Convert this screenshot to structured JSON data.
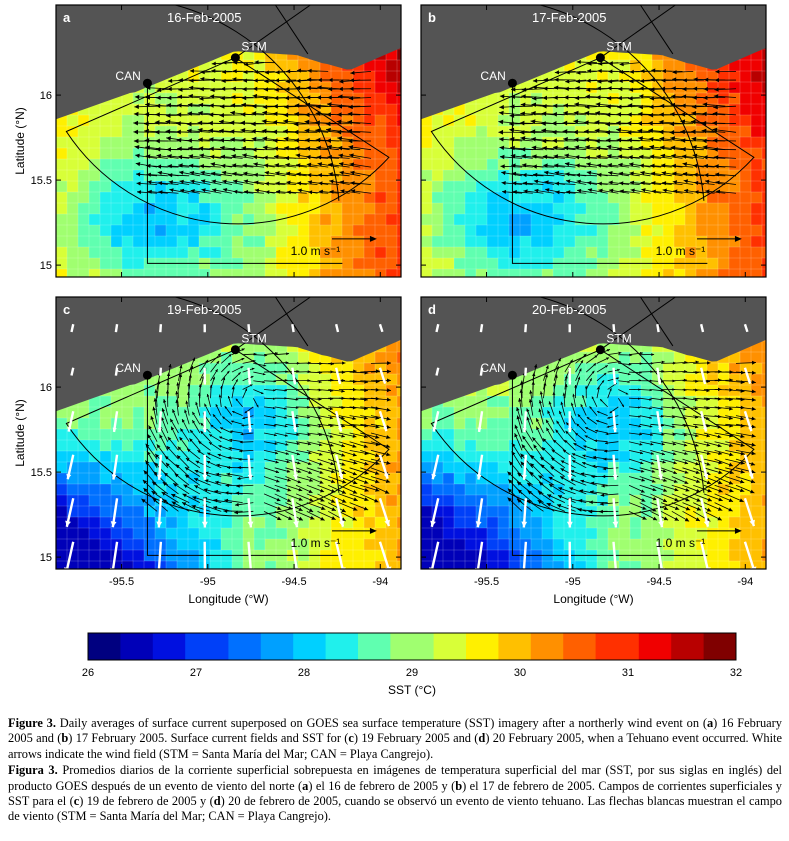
{
  "panels": [
    {
      "letter": "a",
      "date": "16-Feb-2005",
      "mode": "easterly",
      "wind": false,
      "sst": "warm",
      "show_x_labels": false,
      "show_y_labels": true
    },
    {
      "letter": "b",
      "date": "17-Feb-2005",
      "mode": "easterly",
      "wind": false,
      "sst": "warm",
      "show_x_labels": false,
      "show_y_labels": false
    },
    {
      "letter": "c",
      "date": "19-Feb-2005",
      "mode": "gyre",
      "wind": true,
      "sst": "cool",
      "show_x_labels": true,
      "show_y_labels": true
    },
    {
      "letter": "d",
      "date": "20-Feb-2005",
      "mode": "gyre",
      "wind": true,
      "sst": "cool",
      "show_x_labels": true,
      "show_y_labels": false
    }
  ],
  "axes": {
    "xlabel": "Longitude (°W)",
    "ylabel": "Latitude (°N)",
    "xticks": [
      "-95.5",
      "-95",
      "-94.5",
      "-94"
    ],
    "yticks": [
      "16",
      "15.5",
      "15"
    ],
    "xlim": [
      -95.88,
      -93.88
    ],
    "ylim": [
      14.93,
      16.53
    ]
  },
  "stations": [
    {
      "label": "CAN",
      "lon": -95.35,
      "lat": 16.07
    },
    {
      "label": "STM",
      "lon": -94.84,
      "lat": 16.22
    }
  ],
  "scale_label": "1.0 m s⁻¹",
  "colorbar": {
    "label": "SST (°C)",
    "ticks": [
      "26",
      "27",
      "28",
      "29",
      "30",
      "31",
      "32"
    ],
    "min": 26,
    "max": 32,
    "colors": [
      "#000080",
      "#0000b8",
      "#0010e0",
      "#0040f8",
      "#0070ff",
      "#00a0ff",
      "#00d0ff",
      "#20f0ec",
      "#60ffb0",
      "#a0ff70",
      "#d8ff38",
      "#fff000",
      "#ffc000",
      "#ff9000",
      "#ff6000",
      "#ff3000",
      "#f00000",
      "#b80000",
      "#800000"
    ]
  },
  "chart_data": [
    {
      "type": "heatmap",
      "panel": "a",
      "title": "16-Feb-2005",
      "xlabel": "Longitude (°W)",
      "ylabel": "Latitude (°N)",
      "xlim": [
        -95.88,
        -93.88
      ],
      "ylim": [
        14.93,
        16.53
      ],
      "colorbar_range": [
        26,
        32
      ]
    },
    {
      "type": "heatmap",
      "panel": "b",
      "title": "17-Feb-2005",
      "xlabel": "Longitude (°W)",
      "ylabel": "Latitude (°N)",
      "xlim": [
        -95.88,
        -93.88
      ],
      "ylim": [
        14.93,
        16.53
      ],
      "colorbar_range": [
        26,
        32
      ]
    },
    {
      "type": "heatmap",
      "panel": "c",
      "title": "19-Feb-2005",
      "xlabel": "Longitude (°W)",
      "ylabel": "Latitude (°N)",
      "xlim": [
        -95.88,
        -93.88
      ],
      "ylim": [
        14.93,
        16.53
      ],
      "colorbar_range": [
        26,
        32
      ]
    },
    {
      "type": "heatmap",
      "panel": "d",
      "title": "20-Feb-2005",
      "xlabel": "Longitude (°W)",
      "ylabel": "Latitude (°N)",
      "xlim": [
        -95.88,
        -93.88
      ],
      "ylim": [
        14.93,
        16.53
      ],
      "colorbar_range": [
        26,
        32
      ]
    }
  ],
  "caption": {
    "en_label": "Figure 3.",
    "en_text_1": " Daily averages of surface current superposed on GOES sea surface temperature (SST) imagery after a northerly wind event on (",
    "en_a": "a",
    "en_text_2": ") 16 February 2005 and (",
    "en_b": "b",
    "en_text_3": ") 17 February 2005. Surface current fields and SST for (",
    "en_c": "c",
    "en_text_4": ") 19 February 2005 and (",
    "en_d": "d",
    "en_text_5": ") 20 February 2005, when a Tehuano event occurred. White arrows indicate the wind field (STM = Santa María del Mar; CAN = Playa Cangrejo).",
    "es_label": "Figura 3.",
    "es_text_1": " Promedios diarios de la corriente superficial sobrepuesta en imágenes de temperatura superficial del mar (SST, por sus siglas en inglés) del producto GOES después de un evento de viento del norte (",
    "es_a": "a",
    "es_text_2": ") el 16 de febrero de 2005 y (",
    "es_b": "b",
    "es_text_3": ") el 17 de febrero de 2005. Campos de corrientes superficiales y SST para el (",
    "es_c": "c",
    "es_text_4": ") 19 de febrero de 2005 y (",
    "es_d": "d",
    "es_text_5": ") 20 de febrero de 2005, cuando se observó un evento de viento tehuano. Las flechas blancas muestran el campo de viento (STM = Santa María del Mar; CAN = Playa Cangrejo)."
  }
}
